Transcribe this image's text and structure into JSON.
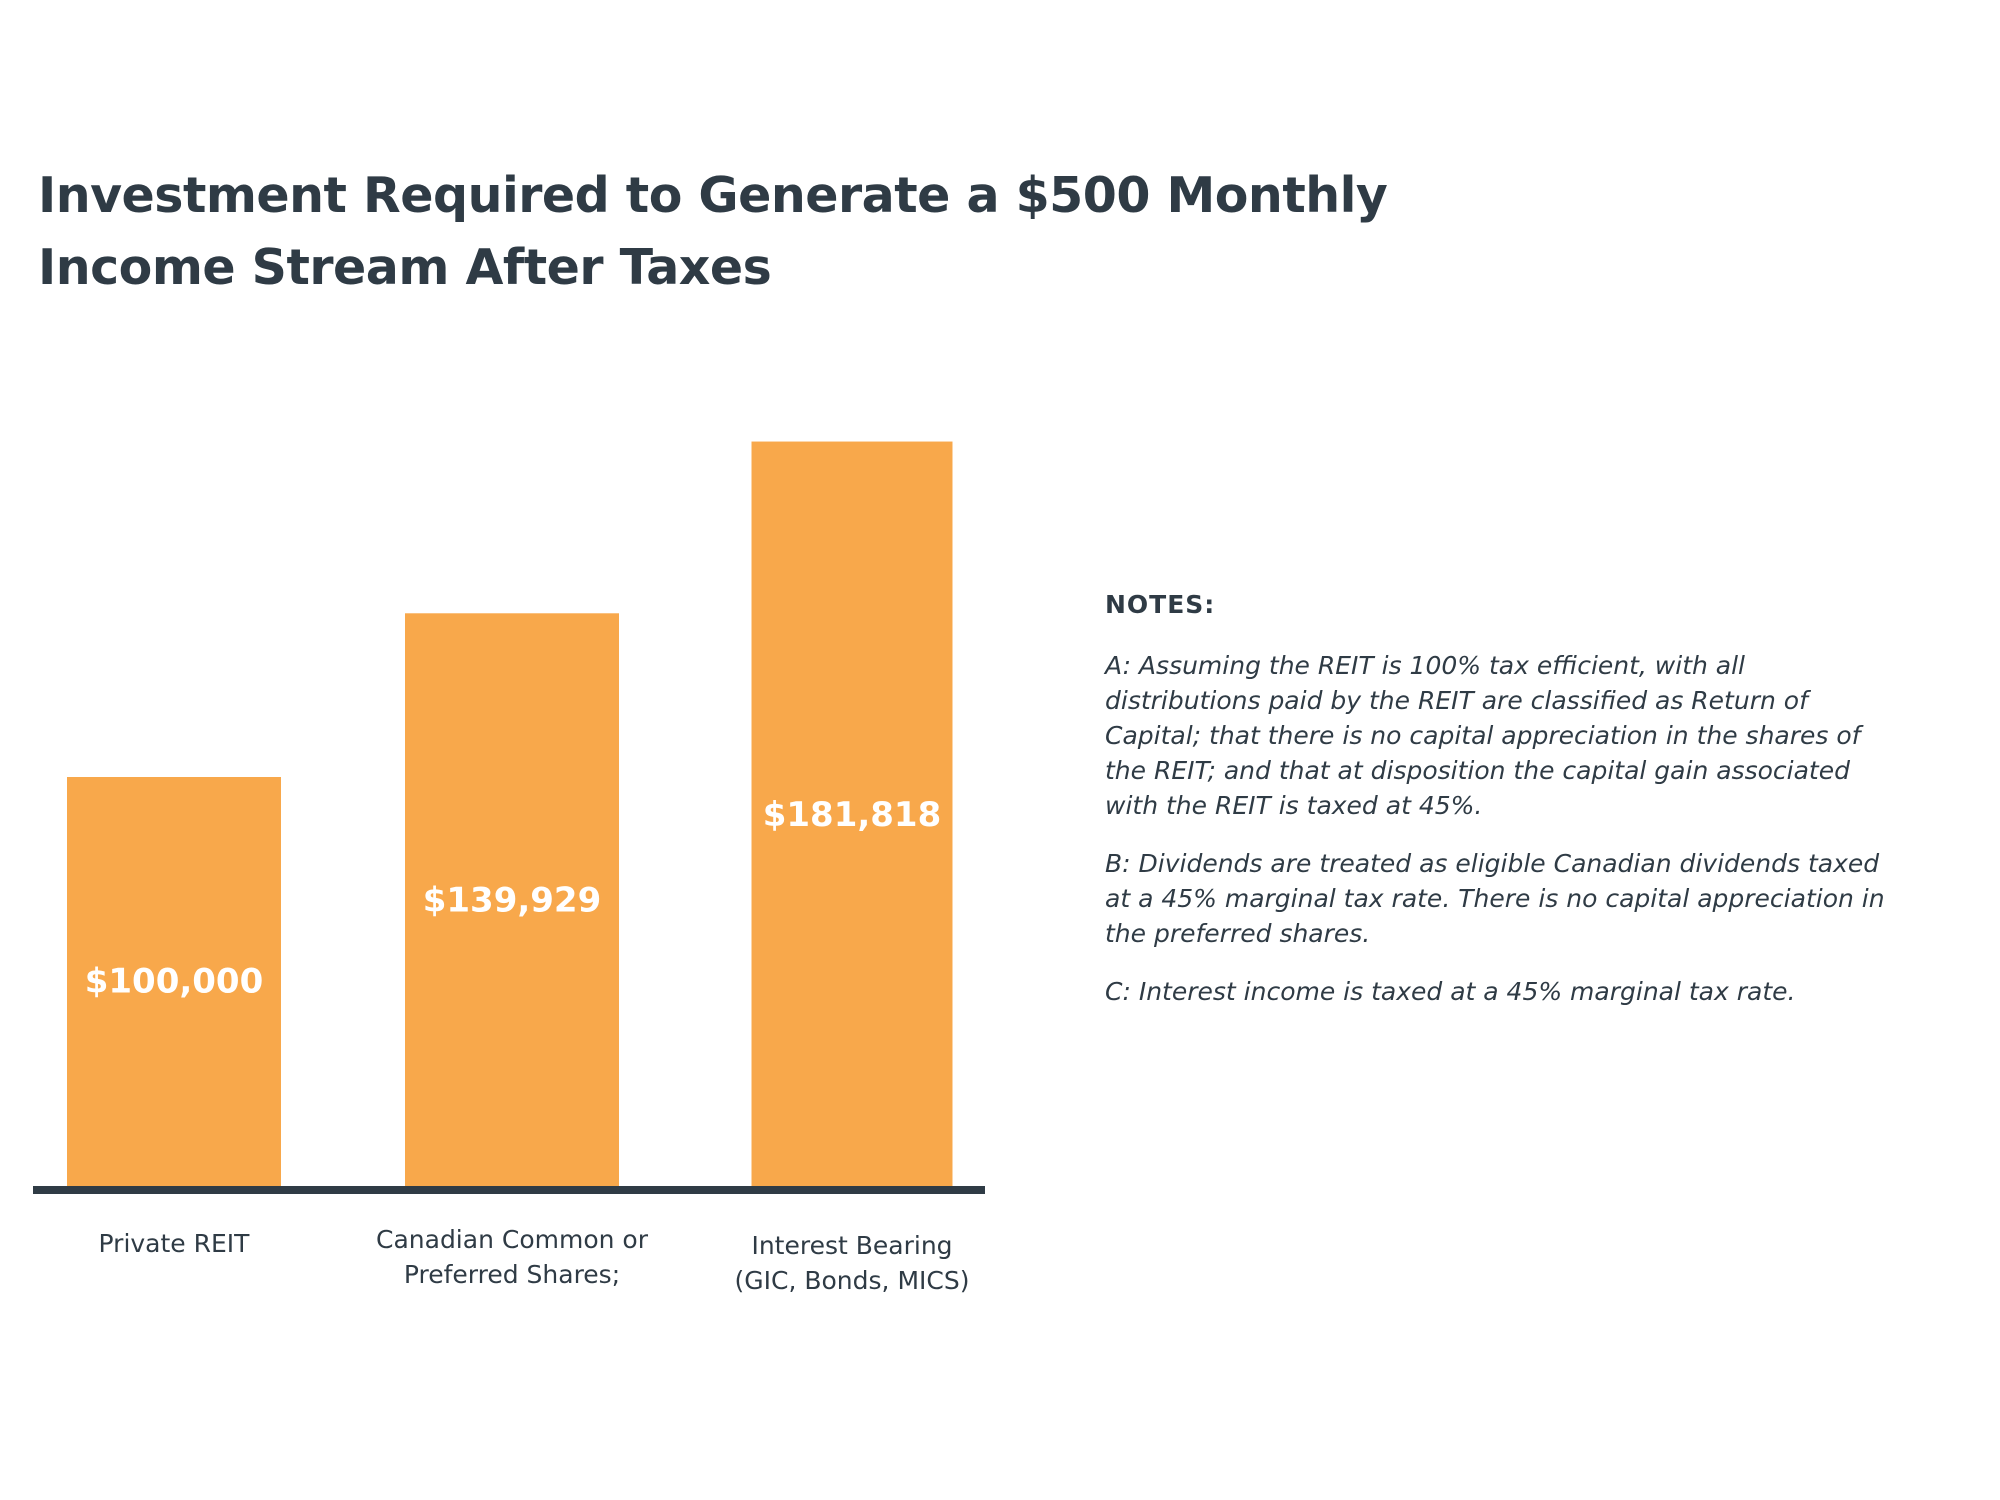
{
  "title_lines": [
    "Investment Required to Generate a $500 Monthly",
    "Income Stream After Taxes"
  ],
  "chart_data": {
    "type": "bar",
    "title": "Investment Required to Generate a $500 Monthly Income Stream After Taxes",
    "categories": [
      [
        "Private REIT"
      ],
      [
        "Canadian Common or",
        "Preferred Shares;"
      ],
      [
        "Interest Bearing",
        "(GIC, Bonds, MICS)"
      ]
    ],
    "values": [
      100000,
      139929,
      181818
    ],
    "value_labels": [
      "$100,000",
      "$139,929",
      "$181,818"
    ],
    "bar_color": "#f8a84b",
    "axis_color": "#2f3b45",
    "value_label_color": "#ffffff",
    "grid": false,
    "legend": "none"
  },
  "notes": {
    "heading": "NOTES:",
    "items": [
      [
        "A: Assuming the REIT is 100% tax efficient, with all",
        "distributions paid by the REIT are classified as Return of",
        "Capital; that there is no capital appreciation in the shares of",
        "the REIT; and that at disposition the capital gain associated",
        "with the REIT is taxed at 45%."
      ],
      [
        "B: Dividends are treated as eligible Canadian dividends taxed",
        "at a 45% marginal tax rate. There is no capital appreciation in",
        "the preferred shares."
      ],
      [
        "C: Interest income is taxed at a 45% marginal tax rate."
      ]
    ]
  }
}
